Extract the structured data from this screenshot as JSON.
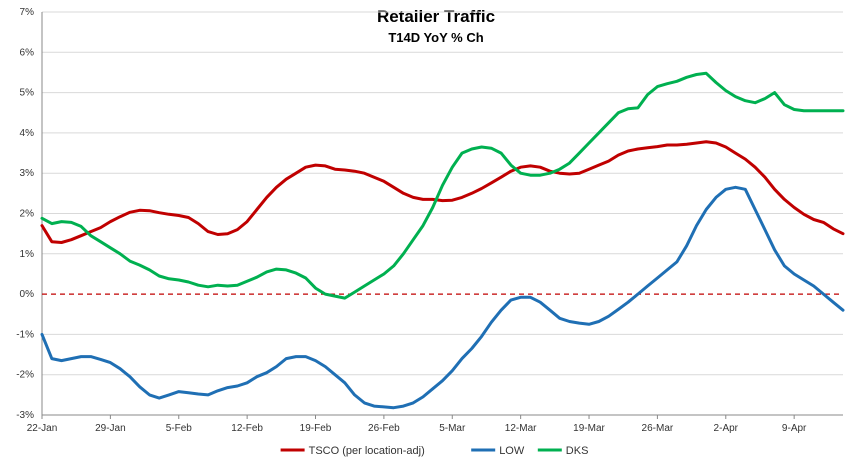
{
  "chart_data": {
    "type": "line",
    "title": "Retailer Traffic",
    "subtitle": "T14D YoY % Ch",
    "xlabel": "",
    "ylabel": "",
    "ylim": [
      -3,
      7
    ],
    "yticks": [
      -3,
      -2,
      -1,
      0,
      1,
      2,
      3,
      4,
      5,
      6,
      7
    ],
    "ytick_labels": [
      "-3%",
      "-2%",
      "-1%",
      "0%",
      "1%",
      "2%",
      "3%",
      "4%",
      "5%",
      "6%",
      "7%"
    ],
    "grid": true,
    "legend_position": "bottom",
    "zero_line": {
      "value": 0,
      "color": "#c00000",
      "style": "dashed"
    },
    "x_categories": [
      "22-Jan",
      "29-Jan",
      "5-Feb",
      "12-Feb",
      "19-Feb",
      "26-Feb",
      "5-Mar",
      "12-Mar",
      "19-Mar",
      "26-Mar",
      "2-Apr",
      "9-Apr"
    ],
    "x_days_total": 82,
    "x_tick_step_days": 7,
    "series": [
      {
        "name": "TSCO (per location-adj)",
        "color": "#c00000",
        "x": [
          0,
          1,
          2,
          3,
          4,
          5,
          6,
          7,
          8,
          9,
          10,
          11,
          12,
          13,
          14,
          15,
          16,
          17,
          18,
          19,
          20,
          21,
          22,
          23,
          24,
          25,
          26,
          27,
          28,
          29,
          30,
          31,
          32,
          33,
          34,
          35,
          36,
          37,
          38,
          39,
          40,
          41,
          42,
          43,
          44,
          45,
          46,
          47,
          48,
          49,
          50,
          51,
          52,
          53,
          54,
          55,
          56,
          57,
          58,
          59,
          60,
          61,
          62,
          63,
          64,
          65,
          66,
          67,
          68,
          69,
          70,
          71,
          72,
          73,
          74,
          75,
          76,
          77,
          78,
          79,
          80,
          81,
          82
        ],
        "values": [
          1.7,
          1.3,
          1.28,
          1.35,
          1.45,
          1.55,
          1.65,
          1.8,
          1.92,
          2.03,
          2.08,
          2.07,
          2.02,
          1.98,
          1.95,
          1.9,
          1.75,
          1.55,
          1.48,
          1.5,
          1.6,
          1.8,
          2.1,
          2.4,
          2.65,
          2.85,
          3.0,
          3.15,
          3.2,
          3.18,
          3.1,
          3.08,
          3.05,
          3.0,
          2.9,
          2.8,
          2.65,
          2.5,
          2.4,
          2.35,
          2.35,
          2.32,
          2.33,
          2.4,
          2.5,
          2.62,
          2.76,
          2.9,
          3.05,
          3.15,
          3.18,
          3.15,
          3.05,
          3.0,
          2.98,
          3.0,
          3.1,
          3.2,
          3.3,
          3.45,
          3.55,
          3.6,
          3.63,
          3.66,
          3.7,
          3.7,
          3.72,
          3.75,
          3.78,
          3.75,
          3.65,
          3.5,
          3.35,
          3.15,
          2.9,
          2.6,
          2.35,
          2.15,
          1.98,
          1.85,
          1.78,
          1.62,
          1.5
        ]
      },
      {
        "name": "LOW",
        "color": "#1f6fb4",
        "x": [
          0,
          1,
          2,
          3,
          4,
          5,
          6,
          7,
          8,
          9,
          10,
          11,
          12,
          13,
          14,
          15,
          16,
          17,
          18,
          19,
          20,
          21,
          22,
          23,
          24,
          25,
          26,
          27,
          28,
          29,
          30,
          31,
          32,
          33,
          34,
          35,
          36,
          37,
          38,
          39,
          40,
          41,
          42,
          43,
          44,
          45,
          46,
          47,
          48,
          49,
          50,
          51,
          52,
          53,
          54,
          55,
          56,
          57,
          58,
          59,
          60,
          61,
          62,
          63,
          64,
          65,
          66,
          67,
          68,
          69,
          70,
          71,
          72,
          73,
          74,
          75,
          76,
          77,
          78,
          79,
          80,
          81,
          82
        ],
        "values": [
          -1.0,
          -1.6,
          -1.65,
          -1.6,
          -1.55,
          -1.55,
          -1.62,
          -1.7,
          -1.85,
          -2.05,
          -2.3,
          -2.5,
          -2.58,
          -2.5,
          -2.42,
          -2.45,
          -2.48,
          -2.5,
          -2.4,
          -2.32,
          -2.28,
          -2.2,
          -2.05,
          -1.95,
          -1.8,
          -1.6,
          -1.55,
          -1.55,
          -1.65,
          -1.8,
          -2.0,
          -2.2,
          -2.5,
          -2.7,
          -2.78,
          -2.8,
          -2.82,
          -2.78,
          -2.7,
          -2.55,
          -2.35,
          -2.15,
          -1.9,
          -1.6,
          -1.35,
          -1.05,
          -0.7,
          -0.4,
          -0.15,
          -0.08,
          -0.08,
          -0.2,
          -0.4,
          -0.6,
          -0.68,
          -0.72,
          -0.75,
          -0.68,
          -0.55,
          -0.38,
          -0.2,
          0.0,
          0.2,
          0.4,
          0.6,
          0.8,
          1.2,
          1.7,
          2.1,
          2.4,
          2.6,
          2.65,
          2.6,
          2.1,
          1.6,
          1.1,
          0.7,
          0.5,
          0.35,
          0.2,
          0.0,
          -0.2,
          -0.4
        ]
      },
      {
        "name": "DKS",
        "color": "#00b050",
        "x": [
          0,
          1,
          2,
          3,
          4,
          5,
          6,
          7,
          8,
          9,
          10,
          11,
          12,
          13,
          14,
          15,
          16,
          17,
          18,
          19,
          20,
          21,
          22,
          23,
          24,
          25,
          26,
          27,
          28,
          29,
          30,
          31,
          32,
          33,
          34,
          35,
          36,
          37,
          38,
          39,
          40,
          41,
          42,
          43,
          44,
          45,
          46,
          47,
          48,
          49,
          50,
          51,
          52,
          53,
          54,
          55,
          56,
          57,
          58,
          59,
          60,
          61,
          62,
          63,
          64,
          65,
          66,
          67,
          68,
          69,
          70,
          71,
          72,
          73,
          74,
          75,
          76,
          77,
          78,
          79,
          80,
          81,
          82
        ],
        "values": [
          1.88,
          1.75,
          1.8,
          1.78,
          1.68,
          1.45,
          1.3,
          1.15,
          1.0,
          0.82,
          0.72,
          0.6,
          0.45,
          0.38,
          0.35,
          0.3,
          0.22,
          0.18,
          0.22,
          0.2,
          0.22,
          0.32,
          0.42,
          0.55,
          0.62,
          0.6,
          0.52,
          0.4,
          0.15,
          0.0,
          -0.05,
          -0.1,
          0.05,
          0.2,
          0.35,
          0.5,
          0.7,
          1.0,
          1.35,
          1.7,
          2.15,
          2.7,
          3.15,
          3.5,
          3.6,
          3.65,
          3.62,
          3.5,
          3.2,
          3.0,
          2.95,
          2.95,
          3.0,
          3.1,
          3.25,
          3.5,
          3.75,
          4.0,
          4.25,
          4.5,
          4.6,
          4.62,
          4.95,
          5.15,
          5.22,
          5.28,
          5.38,
          5.45,
          5.48,
          5.25,
          5.05,
          4.9,
          4.8,
          4.75,
          4.85,
          5.0,
          4.7,
          4.58,
          4.55,
          4.55,
          4.55,
          4.55,
          4.55
        ]
      }
    ]
  }
}
